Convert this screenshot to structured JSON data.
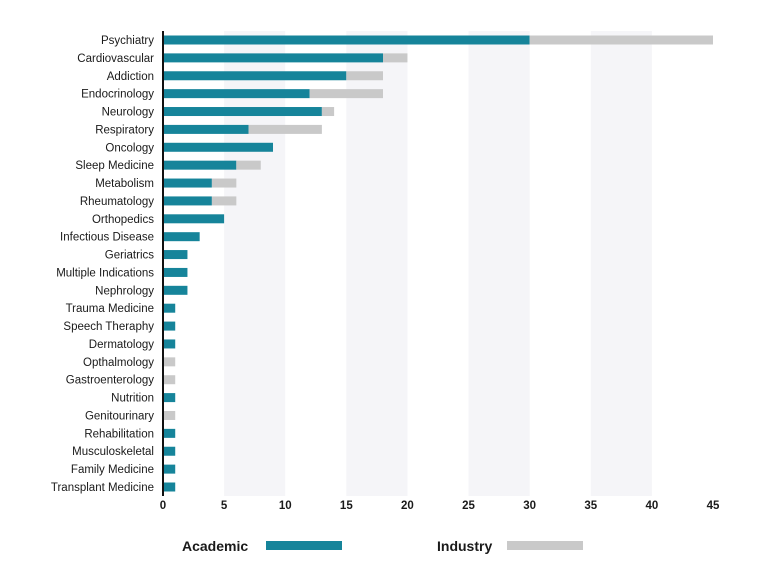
{
  "chart_data": {
    "type": "bar",
    "orientation": "horizontal",
    "stacked": true,
    "categories": [
      "Psychiatry",
      "Cardiovascular",
      "Addiction",
      "Endocrinology",
      "Neurology",
      "Respiratory",
      "Oncology",
      "Sleep Medicine",
      "Metabolism",
      "Rheumatology",
      "Orthopedics",
      "Infectious Disease",
      "Geriatrics",
      "Multiple Indications",
      "Nephrology",
      "Trauma Medicine",
      "Speech Theraphy",
      "Dermatology",
      "Opthalmology",
      "Gastroenterology",
      "Nutrition",
      "Genitourinary",
      "Rehabilitation",
      "Musculoskeletal",
      "Family Medicine",
      "Transplant Medicine"
    ],
    "series": [
      {
        "name": "Academic",
        "color": "#16849a",
        "values": [
          30,
          18,
          15,
          12,
          13,
          7,
          9,
          6,
          4,
          4,
          5,
          3,
          2,
          2,
          2,
          1,
          1,
          1,
          0,
          0,
          1,
          0,
          1,
          1,
          1,
          1
        ]
      },
      {
        "name": "Industry",
        "color": "#c9c9c9",
        "values": [
          15,
          2,
          3,
          6,
          1,
          6,
          0,
          2,
          2,
          2,
          0,
          0,
          0,
          0,
          0,
          0,
          0,
          0,
          1,
          1,
          0,
          1,
          0,
          0,
          0,
          0
        ]
      }
    ],
    "xlim": [
      0,
      45
    ],
    "xticks": [
      0,
      5,
      10,
      15,
      20,
      25,
      30,
      35,
      40,
      45
    ],
    "background_bands": true,
    "band_color": "#f5f5f8",
    "legend_position": "bottom"
  }
}
